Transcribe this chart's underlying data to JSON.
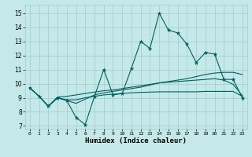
{
  "title": "",
  "xlabel": "Humidex (Indice chaleur)",
  "ylabel": "",
  "xlim": [
    -0.5,
    23.5
  ],
  "ylim": [
    6.8,
    15.6
  ],
  "yticks": [
    7,
    8,
    9,
    10,
    11,
    12,
    13,
    14,
    15
  ],
  "xticks": [
    0,
    1,
    2,
    3,
    4,
    5,
    6,
    7,
    8,
    9,
    10,
    11,
    12,
    13,
    14,
    15,
    16,
    17,
    18,
    19,
    20,
    21,
    22,
    23
  ],
  "bg_color": "#c5e8e8",
  "grid_color": "#a0cccc",
  "line_color": "#006060",
  "series": [
    [
      9.7,
      9.1,
      8.4,
      9.0,
      8.8,
      7.6,
      7.1,
      9.1,
      11.0,
      9.2,
      9.3,
      11.1,
      13.0,
      12.5,
      15.0,
      13.8,
      13.6,
      12.8,
      11.5,
      12.2,
      12.1,
      10.3,
      10.3,
      9.0
    ],
    [
      9.7,
      9.1,
      8.4,
      9.0,
      8.8,
      8.6,
      8.9,
      9.2,
      9.35,
      9.45,
      9.55,
      9.65,
      9.75,
      9.9,
      10.05,
      10.15,
      10.25,
      10.35,
      10.5,
      10.65,
      10.75,
      10.8,
      10.8,
      10.65
    ],
    [
      9.7,
      9.1,
      8.4,
      9.05,
      9.1,
      9.2,
      9.3,
      9.4,
      9.5,
      9.55,
      9.65,
      9.75,
      9.85,
      9.95,
      10.05,
      10.1,
      10.15,
      10.2,
      10.25,
      10.3,
      10.35,
      10.25,
      9.95,
      9.15
    ],
    [
      9.7,
      9.1,
      8.4,
      9.0,
      8.85,
      8.85,
      9.0,
      9.1,
      9.2,
      9.25,
      9.3,
      9.35,
      9.38,
      9.4,
      9.42,
      9.42,
      9.42,
      9.42,
      9.42,
      9.45,
      9.45,
      9.45,
      9.45,
      9.1
    ]
  ]
}
